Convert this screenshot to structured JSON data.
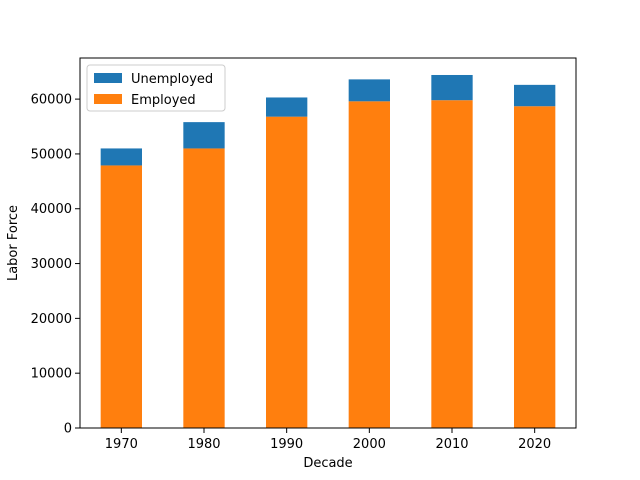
{
  "chart_data": {
    "type": "bar",
    "stacked": true,
    "categories": [
      "1970",
      "1980",
      "1990",
      "2000",
      "2010",
      "2020"
    ],
    "series": [
      {
        "name": "Employed",
        "color": "#ff7f0e",
        "values": [
          47900,
          51000,
          56800,
          59600,
          59800,
          58700
        ]
      },
      {
        "name": "Unemployed",
        "color": "#1f77b4",
        "values": [
          3100,
          4800,
          3500,
          4000,
          4600,
          3900
        ]
      }
    ],
    "legend_order": [
      "Unemployed",
      "Employed"
    ],
    "xlabel": "Decade",
    "ylabel": "Labor Force",
    "ylim": [
      0,
      67500
    ],
    "yticks": [
      0,
      10000,
      20000,
      30000,
      40000,
      50000,
      60000
    ],
    "ytick_labels": [
      "0",
      "10000",
      "20000",
      "30000",
      "40000",
      "50000",
      "60000"
    ],
    "grid": false,
    "legend_position": "top-left"
  }
}
